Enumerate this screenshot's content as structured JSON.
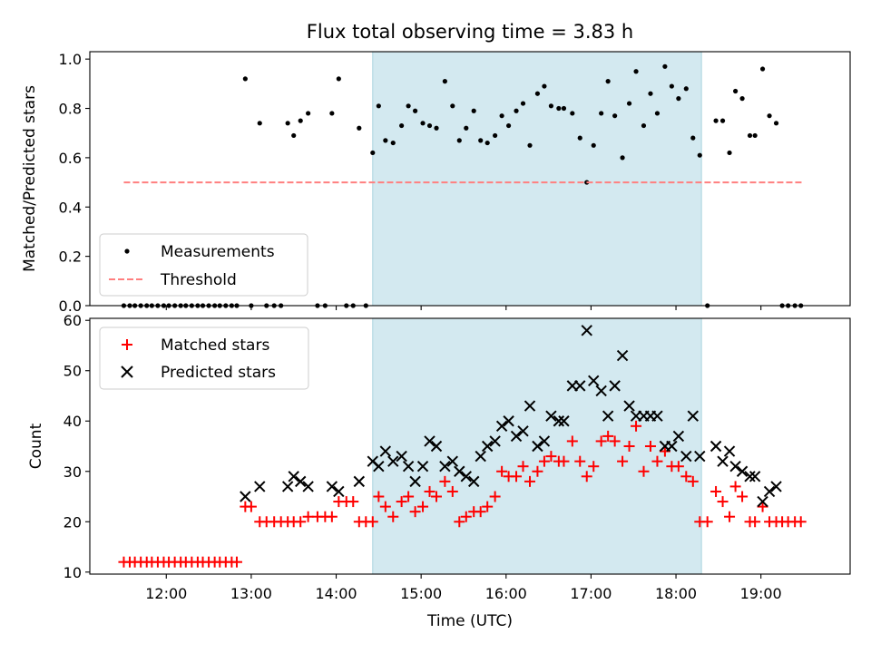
{
  "chart_data": {
    "type": "scatter",
    "title": "Flux total observing time = 3.83 h",
    "xlabel": "Time (UTC)",
    "x_tick_labels": [
      "12:00",
      "13:00",
      "14:00",
      "15:00",
      "16:00",
      "17:00",
      "18:00",
      "19:00"
    ],
    "x_tick_hours": [
      12,
      13,
      14,
      15,
      16,
      17,
      18,
      19
    ],
    "xlim_hours": [
      11.1,
      20.05
    ],
    "shaded_interval_hours": [
      14.43,
      18.3
    ],
    "shade_color": "#d3e9f0",
    "panels": [
      {
        "id": "ratio",
        "ylabel": "Matched/Predicted stars",
        "ylim": [
          0,
          1.03
        ],
        "y_ticks": [
          0,
          0.2,
          0.4,
          0.6,
          0.8,
          1.0
        ],
        "y_tick_labels": [
          "0.0",
          "0.2",
          "0.4",
          "0.6",
          "0.8",
          "1.0"
        ],
        "legend_position": "lower-left",
        "series": [
          {
            "name": "Measurements",
            "marker": "dot",
            "color": "#000000",
            "x": [
              11.5,
              11.57,
              11.63,
              11.7,
              11.77,
              11.83,
              11.9,
              11.97,
              12.03,
              12.1,
              12.17,
              12.23,
              12.3,
              12.37,
              12.43,
              12.5,
              12.57,
              12.63,
              12.7,
              12.77,
              12.83,
              12.93,
              13.0,
              13.1,
              13.18,
              13.27,
              13.35,
              13.43,
              13.5,
              13.58,
              13.67,
              13.78,
              13.87,
              13.95,
              14.03,
              14.12,
              14.2,
              14.27,
              14.35,
              14.43,
              14.5,
              14.58,
              14.67,
              14.77,
              14.85,
              14.93,
              15.02,
              15.1,
              15.18,
              15.28,
              15.37,
              15.45,
              15.53,
              15.62,
              15.7,
              15.78,
              15.87,
              15.95,
              16.03,
              16.12,
              16.2,
              16.28,
              16.37,
              16.45,
              16.53,
              16.62,
              16.68,
              16.78,
              16.87,
              16.95,
              17.03,
              17.12,
              17.2,
              17.28,
              17.37,
              17.45,
              17.53,
              17.62,
              17.7,
              17.78,
              17.87,
              17.95,
              18.03,
              18.12,
              18.2,
              18.28,
              18.37,
              18.47,
              18.55,
              18.63,
              18.7,
              18.78,
              18.87,
              18.93,
              19.02,
              19.1,
              19.18,
              19.25,
              19.32,
              19.4,
              19.47
            ],
            "y": [
              0,
              0,
              0,
              0,
              0,
              0,
              0,
              0,
              0,
              0,
              0,
              0,
              0,
              0,
              0,
              0,
              0,
              0,
              0,
              0,
              0,
              0.92,
              0,
              0.74,
              0,
              0,
              0,
              0.74,
              0.69,
              0.75,
              0.78,
              0,
              0,
              0.78,
              0.92,
              0,
              0,
              0.72,
              0,
              0.62,
              0.81,
              0.67,
              0.66,
              0.73,
              0.81,
              0.79,
              0.74,
              0.73,
              0.72,
              0.91,
              0.81,
              0.67,
              0.72,
              0.79,
              0.67,
              0.66,
              0.69,
              0.77,
              0.73,
              0.79,
              0.82,
              0.65,
              0.86,
              0.89,
              0.81,
              0.8,
              0.8,
              0.78,
              0.68,
              0.5,
              0.65,
              0.78,
              0.91,
              0.77,
              0.6,
              0.82,
              0.95,
              0.73,
              0.86,
              0.78,
              0.97,
              0.89,
              0.84,
              0.88,
              0.68,
              0.61,
              0,
              0.75,
              0.75,
              0.62,
              0.87,
              0.84,
              0.69,
              0.69,
              0.96,
              0.77,
              0.74,
              0,
              0,
              0,
              0
            ]
          },
          {
            "name": "Threshold",
            "marker": "dashed-line",
            "color": "#ff7f7f",
            "x": [
              11.5,
              19.5
            ],
            "y": [
              0.5,
              0.5
            ]
          }
        ]
      },
      {
        "id": "counts",
        "ylabel": "Count",
        "ylim": [
          9.6,
          60.4
        ],
        "y_ticks": [
          10,
          20,
          30,
          40,
          50,
          60
        ],
        "y_tick_labels": [
          "10",
          "20",
          "30",
          "40",
          "50",
          "60"
        ],
        "legend_position": "upper-left",
        "series": [
          {
            "name": "Matched stars",
            "marker": "plus",
            "color": "#ff0000",
            "x": [
              11.5,
              11.57,
              11.63,
              11.7,
              11.77,
              11.83,
              11.9,
              11.97,
              12.03,
              12.1,
              12.17,
              12.23,
              12.3,
              12.37,
              12.43,
              12.5,
              12.57,
              12.63,
              12.7,
              12.77,
              12.83,
              12.93,
              13.0,
              13.1,
              13.18,
              13.27,
              13.35,
              13.43,
              13.5,
              13.58,
              13.67,
              13.78,
              13.87,
              13.95,
              14.03,
              14.12,
              14.2,
              14.27,
              14.35,
              14.43,
              14.5,
              14.58,
              14.67,
              14.77,
              14.85,
              14.93,
              15.02,
              15.1,
              15.18,
              15.28,
              15.37,
              15.45,
              15.53,
              15.62,
              15.7,
              15.78,
              15.87,
              15.95,
              16.03,
              16.12,
              16.2,
              16.28,
              16.37,
              16.45,
              16.53,
              16.62,
              16.68,
              16.78,
              16.87,
              16.95,
              17.03,
              17.12,
              17.2,
              17.28,
              17.37,
              17.45,
              17.53,
              17.62,
              17.7,
              17.78,
              17.87,
              17.95,
              18.03,
              18.12,
              18.2,
              18.28,
              18.37,
              18.47,
              18.55,
              18.63,
              18.7,
              18.78,
              18.87,
              18.93,
              19.02,
              19.1,
              19.18,
              19.25,
              19.32,
              19.4,
              19.47
            ],
            "y": [
              12,
              12,
              12,
              12,
              12,
              12,
              12,
              12,
              12,
              12,
              12,
              12,
              12,
              12,
              12,
              12,
              12,
              12,
              12,
              12,
              12,
              23,
              23,
              20,
              20,
              20,
              20,
              20,
              20,
              20,
              21,
              21,
              21,
              21,
              24,
              24,
              24,
              20,
              20,
              20,
              25,
              23,
              21,
              24,
              25,
              22,
              23,
              26,
              25,
              28,
              26,
              20,
              21,
              22,
              22,
              23,
              25,
              30,
              29,
              29,
              31,
              28,
              30,
              32,
              33,
              32,
              32,
              36,
              32,
              29,
              31,
              36,
              37,
              36,
              32,
              35,
              39,
              30,
              35,
              32,
              34,
              31,
              31,
              29,
              28,
              20,
              20,
              26,
              24,
              21,
              27,
              25,
              20,
              20,
              23,
              20,
              20,
              20,
              20,
              20,
              20
            ]
          },
          {
            "name": "Predicted stars",
            "marker": "x",
            "color": "#000000",
            "x": [
              12.93,
              13.1,
              13.43,
              13.5,
              13.58,
              13.67,
              13.95,
              14.03,
              14.27,
              14.43,
              14.5,
              14.58,
              14.67,
              14.77,
              14.85,
              14.93,
              15.02,
              15.1,
              15.18,
              15.28,
              15.37,
              15.45,
              15.53,
              15.62,
              15.7,
              15.78,
              15.87,
              15.95,
              16.03,
              16.12,
              16.2,
              16.28,
              16.37,
              16.45,
              16.53,
              16.62,
              16.68,
              16.78,
              16.87,
              16.95,
              17.03,
              17.12,
              17.2,
              17.28,
              17.37,
              17.45,
              17.53,
              17.62,
              17.7,
              17.78,
              17.87,
              17.95,
              18.03,
              18.12,
              18.2,
              18.28,
              18.47,
              18.55,
              18.63,
              18.7,
              18.78,
              18.87,
              18.93,
              19.02,
              19.1,
              19.18
            ],
            "y": [
              25,
              27,
              27,
              29,
              28,
              27,
              27,
              26,
              28,
              32,
              31,
              34,
              32,
              33,
              31,
              28,
              31,
              36,
              35,
              31,
              32,
              30,
              29,
              28,
              33,
              35,
              36,
              39,
              40,
              37,
              38,
              43,
              35,
              36,
              41,
              40,
              40,
              47,
              47,
              58,
              48,
              46,
              41,
              47,
              53,
              43,
              41,
              41,
              41,
              41,
              35,
              35,
              37,
              33,
              41,
              33,
              35,
              32,
              34,
              31,
              30,
              29,
              29,
              24,
              26,
              27
            ]
          }
        ]
      }
    ]
  }
}
